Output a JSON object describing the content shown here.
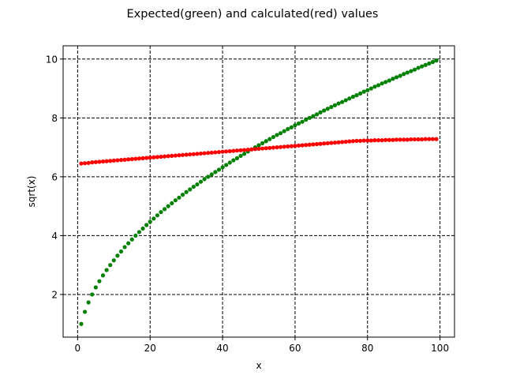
{
  "chart_data": {
    "type": "scatter",
    "title": "Expected(green) and calculated(red) values",
    "xlabel": "x",
    "ylabel": "sqrt(x)",
    "xlim": [
      -4.0,
      104.0
    ],
    "ylim": [
      0.55,
      10.45
    ],
    "xticks": [
      0,
      20,
      40,
      60,
      80,
      100
    ],
    "yticks": [
      2,
      4,
      6,
      8,
      10
    ],
    "xtick_labels": [
      "0",
      "20",
      "40",
      "60",
      "80",
      "100"
    ],
    "ytick_labels": [
      "2",
      "4",
      "6",
      "8",
      "10"
    ],
    "grid": true,
    "grid_style": "dashed",
    "x": [
      1,
      2,
      3,
      4,
      5,
      6,
      7,
      8,
      9,
      10,
      11,
      12,
      13,
      14,
      15,
      16,
      17,
      18,
      19,
      20,
      21,
      22,
      23,
      24,
      25,
      26,
      27,
      28,
      29,
      30,
      31,
      32,
      33,
      34,
      35,
      36,
      37,
      38,
      39,
      40,
      41,
      42,
      43,
      44,
      45,
      46,
      47,
      48,
      49,
      50,
      51,
      52,
      53,
      54,
      55,
      56,
      57,
      58,
      59,
      60,
      61,
      62,
      63,
      64,
      65,
      66,
      67,
      68,
      69,
      70,
      71,
      72,
      73,
      74,
      75,
      76,
      77,
      78,
      79,
      80,
      81,
      82,
      83,
      84,
      85,
      86,
      87,
      88,
      89,
      90,
      91,
      92,
      93,
      94,
      95,
      96,
      97,
      98,
      99
    ],
    "series": [
      {
        "color": "#008000",
        "values": [
          1.0,
          1.41,
          1.73,
          2.0,
          2.24,
          2.45,
          2.65,
          2.83,
          3.0,
          3.16,
          3.32,
          3.46,
          3.61,
          3.74,
          3.87,
          4.0,
          4.12,
          4.24,
          4.36,
          4.47,
          4.58,
          4.69,
          4.8,
          4.9,
          5.0,
          5.1,
          5.2,
          5.29,
          5.39,
          5.48,
          5.57,
          5.66,
          5.74,
          5.83,
          5.92,
          6.0,
          6.08,
          6.16,
          6.24,
          6.32,
          6.4,
          6.48,
          6.56,
          6.63,
          6.71,
          6.78,
          6.86,
          6.93,
          7.0,
          7.07,
          7.14,
          7.21,
          7.28,
          7.35,
          7.42,
          7.48,
          7.55,
          7.62,
          7.68,
          7.75,
          7.81,
          7.87,
          7.94,
          8.0,
          8.06,
          8.12,
          8.19,
          8.25,
          8.31,
          8.37,
          8.43,
          8.49,
          8.54,
          8.6,
          8.66,
          8.72,
          8.77,
          8.83,
          8.89,
          8.94,
          9.0,
          9.06,
          9.11,
          9.17,
          9.22,
          9.27,
          9.33,
          9.38,
          9.43,
          9.49,
          9.54,
          9.59,
          9.64,
          9.7,
          9.75,
          9.8,
          9.85,
          9.9,
          9.95
        ]
      },
      {
        "color": "#ff0000",
        "values": [
          6.45,
          6.46,
          6.47,
          6.49,
          6.5,
          6.51,
          6.52,
          6.53,
          6.54,
          6.55,
          6.56,
          6.57,
          6.58,
          6.59,
          6.6,
          6.61,
          6.62,
          6.63,
          6.64,
          6.65,
          6.66,
          6.67,
          6.68,
          6.69,
          6.7,
          6.71,
          6.72,
          6.73,
          6.74,
          6.75,
          6.76,
          6.77,
          6.78,
          6.79,
          6.8,
          6.81,
          6.82,
          6.83,
          6.84,
          6.85,
          6.86,
          6.87,
          6.88,
          6.89,
          6.9,
          6.91,
          6.92,
          6.93,
          6.94,
          6.95,
          6.96,
          6.97,
          6.98,
          6.99,
          7.0,
          7.01,
          7.02,
          7.03,
          7.04,
          7.05,
          7.06,
          7.07,
          7.08,
          7.09,
          7.1,
          7.11,
          7.12,
          7.13,
          7.14,
          7.15,
          7.16,
          7.17,
          7.18,
          7.19,
          7.2,
          7.21,
          7.22,
          7.22,
          7.23,
          7.23,
          7.23,
          7.24,
          7.24,
          7.24,
          7.25,
          7.25,
          7.25,
          7.26,
          7.26,
          7.26,
          7.26,
          7.27,
          7.27,
          7.27,
          7.27,
          7.28,
          7.28,
          7.28,
          7.28
        ]
      }
    ]
  }
}
